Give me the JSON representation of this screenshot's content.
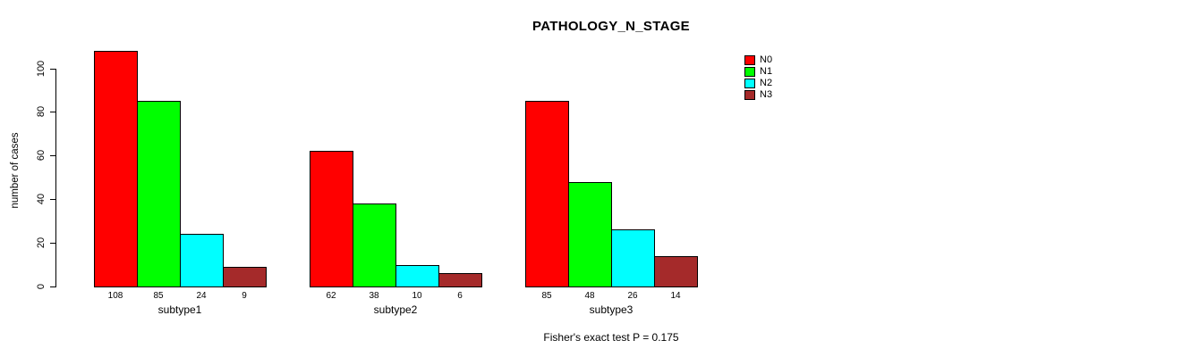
{
  "page": {
    "background": "#ffffff"
  },
  "chart_data": {
    "type": "bar",
    "title": "PATHOLOGY_N_STAGE",
    "ylabel": "number of cases",
    "xlabel": "",
    "footer": "Fisher's exact test P = 0.175",
    "categories": [
      "subtype1",
      "subtype2",
      "subtype3"
    ],
    "series": [
      {
        "name": "N0",
        "color": "#FF0000",
        "values": [
          108,
          62,
          85
        ]
      },
      {
        "name": "N1",
        "color": "#00FF00",
        "values": [
          85,
          38,
          48
        ]
      },
      {
        "name": "N2",
        "color": "#00FFFF",
        "values": [
          24,
          10,
          26
        ]
      },
      {
        "name": "N3",
        "color": "#A52A2A",
        "values": [
          9,
          6,
          14
        ]
      }
    ],
    "bar_value_labels": [
      [
        "108",
        "85",
        "24",
        "9"
      ],
      [
        "62",
        "38",
        "10",
        "6"
      ],
      [
        "85",
        "48",
        "26",
        "14"
      ]
    ],
    "yticks": [
      0,
      20,
      40,
      60,
      80,
      100
    ],
    "ylim": [
      0,
      110
    ],
    "grid": false,
    "legend_position": "top-right",
    "legend_entries": [
      "N0",
      "N1",
      "N2",
      "N3"
    ]
  }
}
